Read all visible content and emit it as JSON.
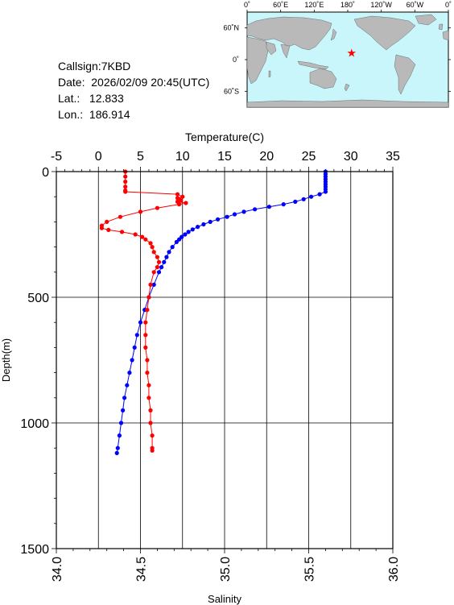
{
  "header": {
    "callsign": "Callsign:7KBD",
    "date": "Date:  2026/02/09 20:45(UTC)",
    "lat": "Lat.:   12.833",
    "lon": "Lon.:  186.914"
  },
  "map": {
    "top_labels": [
      "0˚",
      "60˚E",
      "120˚E",
      "180˚",
      "120˚W",
      "60˚W",
      "0˚"
    ],
    "side_labels": [
      "60˚N",
      "0˚",
      "60˚S"
    ],
    "colors": {
      "ocean": "#c8f6fb",
      "land": "#b9b9b9",
      "marker": "#ff0000"
    },
    "marker": {
      "lat": 12.833,
      "lon": 186.914
    }
  },
  "chart_data": {
    "type": "line",
    "top_axis_label": "Temperature(C)",
    "bottom_axis_label": "Salinity",
    "ylabel": "Depth(m)",
    "temperature_ticks": [
      "-5",
      "0",
      "5",
      "10",
      "15",
      "20",
      "25",
      "30",
      "35"
    ],
    "salinity_ticks": [
      "34.0",
      "34.5",
      "35.0",
      "35.5",
      "36.0"
    ],
    "depth_ticks": [
      "0",
      "500",
      "1000",
      "1500"
    ],
    "temperature_range": [
      -5,
      35
    ],
    "salinity_range": [
      34.0,
      36.0
    ],
    "depth_range": [
      0,
      1500
    ],
    "grid": true,
    "series": [
      {
        "quantity": "temperature",
        "color": "#0000ff",
        "depth": [
          0,
          10,
          20,
          30,
          40,
          50,
          60,
          70,
          80,
          90,
          100,
          110,
          120,
          130,
          140,
          150,
          160,
          170,
          180,
          190,
          200,
          210,
          220,
          230,
          240,
          250,
          260,
          270,
          280,
          300,
          320,
          340,
          360,
          380,
          400,
          450,
          500,
          550,
          600,
          650,
          700,
          750,
          800,
          850,
          900,
          950,
          1000,
          1050,
          1100,
          1120
        ],
        "values": [
          27.0,
          27.0,
          27.0,
          27.0,
          27.0,
          27.0,
          27.0,
          27.0,
          27.0,
          26.3,
          25.3,
          24.4,
          23.4,
          22.0,
          20.3,
          18.6,
          17.3,
          16.2,
          15.3,
          14.2,
          13.3,
          12.5,
          11.8,
          11.2,
          10.7,
          10.3,
          9.9,
          9.6,
          9.3,
          8.8,
          8.4,
          8.1,
          7.8,
          7.5,
          7.2,
          6.6,
          6.0,
          5.5,
          5.0,
          4.6,
          4.3,
          4.0,
          3.7,
          3.4,
          3.1,
          2.9,
          2.7,
          2.5,
          2.3,
          2.2
        ]
      },
      {
        "quantity": "salinity",
        "color": "#ff0000",
        "depth": [
          0,
          20,
          40,
          60,
          75,
          80,
          90,
          100,
          105,
          110,
          115,
          120,
          125,
          130,
          145,
          160,
          180,
          200,
          215,
          225,
          232,
          240,
          250,
          260,
          270,
          285,
          300,
          320,
          340,
          360,
          380,
          400,
          450,
          500,
          550,
          600,
          650,
          700,
          750,
          800,
          850,
          900,
          950,
          1000,
          1050,
          1100,
          1110
        ],
        "values": [
          34.41,
          34.41,
          34.41,
          34.41,
          34.41,
          34.41,
          34.72,
          34.75,
          34.72,
          34.73,
          34.74,
          34.72,
          34.77,
          34.73,
          34.6,
          34.5,
          34.38,
          34.3,
          34.27,
          34.27,
          34.31,
          34.39,
          34.47,
          34.51,
          34.53,
          34.56,
          34.57,
          34.58,
          34.6,
          34.61,
          34.6,
          34.58,
          34.56,
          34.55,
          34.54,
          34.53,
          34.53,
          34.53,
          34.54,
          34.54,
          34.55,
          34.55,
          34.56,
          34.56,
          34.57,
          34.57,
          34.57
        ]
      }
    ]
  }
}
